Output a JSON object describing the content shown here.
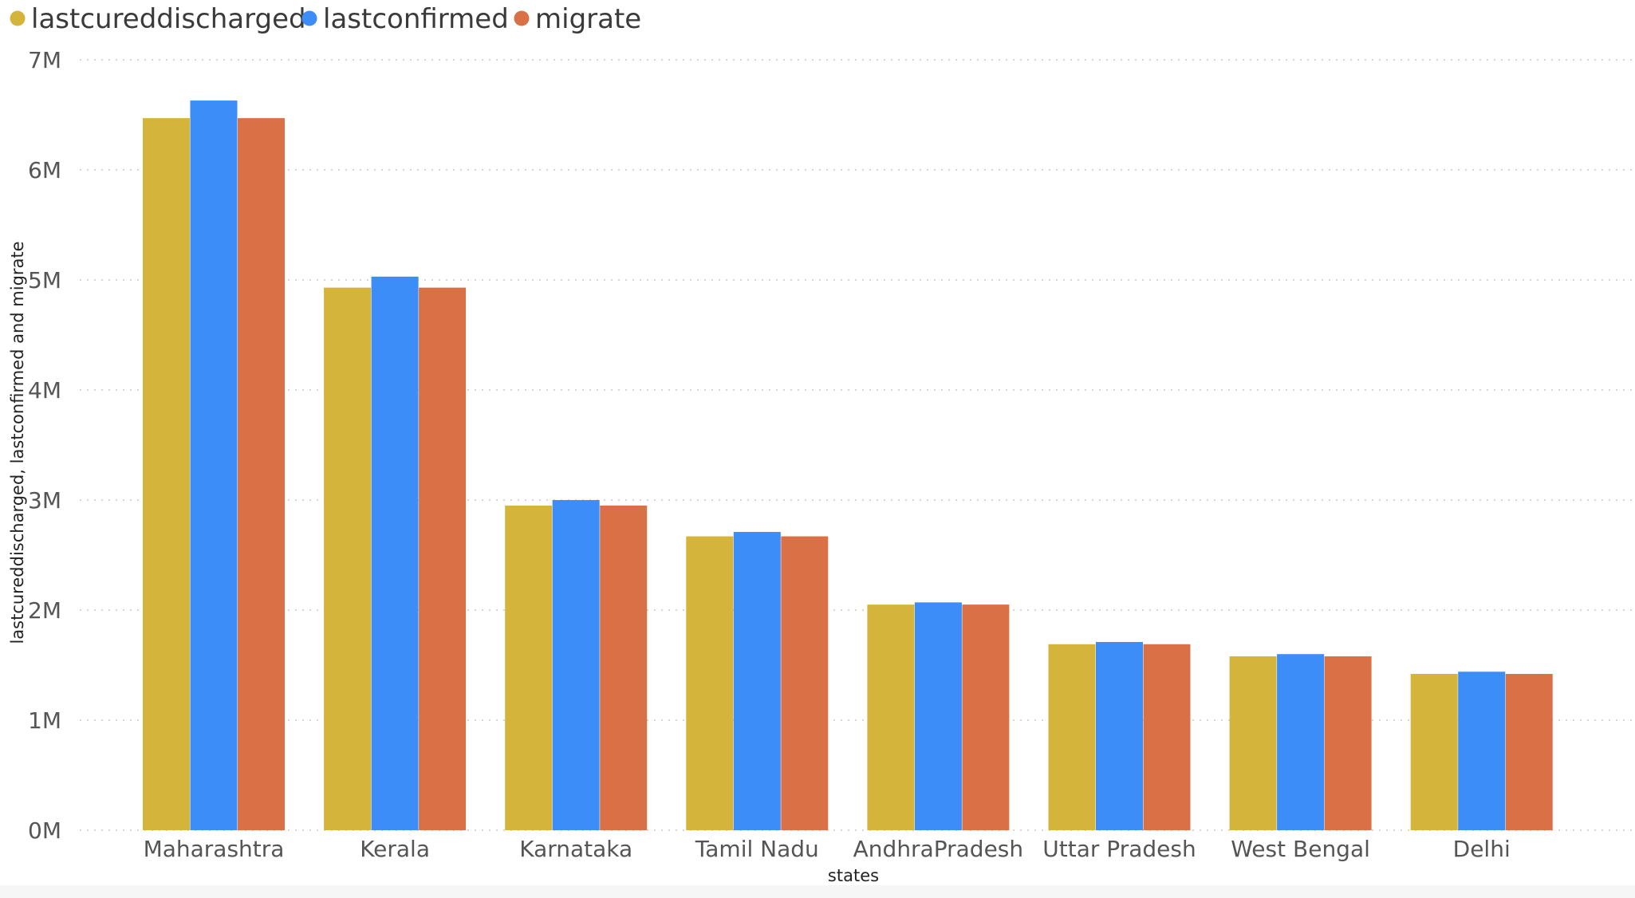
{
  "chart_data": {
    "type": "bar",
    "title": "",
    "xlabel": "states",
    "ylabel": "lastcureddischarged, lastconfirmed and migrate",
    "categories": [
      "Maharashtra",
      "Kerala",
      "Karnataka",
      "Tamil Nadu",
      "AndhraPradesh",
      "Uttar Pradesh",
      "West Bengal",
      "Delhi"
    ],
    "series": [
      {
        "name": "lastcureddischarged",
        "color": "#D4B43A",
        "values": [
          6470000,
          4930000,
          2950000,
          2670000,
          2050000,
          1690000,
          1580000,
          1420000
        ]
      },
      {
        "name": "lastconfirmed",
        "color": "#3C8DF7",
        "values": [
          6630000,
          5030000,
          3000000,
          2710000,
          2070000,
          1710000,
          1600000,
          1440000
        ]
      },
      {
        "name": "migrate",
        "color": "#D97046",
        "values": [
          6470000,
          4930000,
          2950000,
          2670000,
          2050000,
          1690000,
          1580000,
          1420000
        ]
      }
    ],
    "ylim": [
      0,
      7000000
    ],
    "yticks": [
      {
        "value": 0,
        "label": "0M"
      },
      {
        "value": 1000000,
        "label": "1M"
      },
      {
        "value": 2000000,
        "label": "2M"
      },
      {
        "value": 3000000,
        "label": "3M"
      },
      {
        "value": 4000000,
        "label": "4M"
      },
      {
        "value": 5000000,
        "label": "5M"
      },
      {
        "value": 6000000,
        "label": "6M"
      },
      {
        "value": 7000000,
        "label": "7M"
      }
    ],
    "grid": true,
    "legend": "top-left"
  }
}
